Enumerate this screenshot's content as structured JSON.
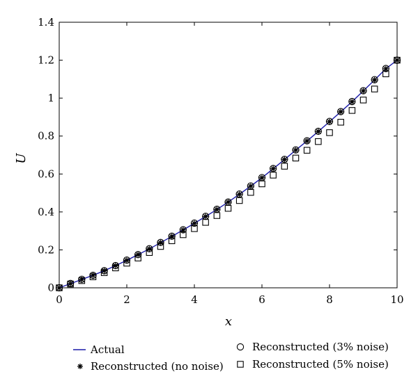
{
  "chart_data": {
    "type": "line",
    "title": "",
    "xlabel": "x",
    "ylabel": "U",
    "xlim": [
      0,
      10
    ],
    "ylim": [
      0,
      1.4
    ],
    "xticks": [
      "0",
      "2",
      "4",
      "6",
      "8",
      "10"
    ],
    "yticks": [
      "0",
      "0.2",
      "0.4",
      "0.6",
      "0.8",
      "1",
      "1.2",
      "1.4"
    ],
    "grid": false,
    "legend_position": "below",
    "x": [
      0,
      0.333,
      0.667,
      1.0,
      1.333,
      1.667,
      2.0,
      2.333,
      2.667,
      3.0,
      3.333,
      3.667,
      4.0,
      4.333,
      4.667,
      5.0,
      5.333,
      5.667,
      6.0,
      6.333,
      6.667,
      7.0,
      7.333,
      7.667,
      8.0,
      8.333,
      8.667,
      9.0,
      9.333,
      9.667,
      10.0
    ],
    "series": [
      {
        "name": "Actual",
        "style": "line",
        "color": "#1a1aa8",
        "values": [
          0,
          0.022,
          0.044,
          0.066,
          0.09,
          0.117,
          0.145,
          0.175,
          0.205,
          0.238,
          0.271,
          0.305,
          0.34,
          0.376,
          0.413,
          0.452,
          0.493,
          0.536,
          0.58,
          0.628,
          0.676,
          0.726,
          0.774,
          0.824,
          0.876,
          0.928,
          0.981,
          1.038,
          1.096,
          1.155,
          1.2
        ]
      },
      {
        "name": "Reconstructed (no noise)",
        "style": "star",
        "color": "#000000",
        "values": [
          0,
          0.022,
          0.044,
          0.066,
          0.09,
          0.117,
          0.145,
          0.175,
          0.205,
          0.238,
          0.271,
          0.305,
          0.34,
          0.376,
          0.413,
          0.452,
          0.493,
          0.536,
          0.58,
          0.628,
          0.676,
          0.726,
          0.774,
          0.824,
          0.876,
          0.928,
          0.981,
          1.038,
          1.096,
          1.155,
          1.2
        ]
      },
      {
        "name": "Reconstructed (3% noise)",
        "style": "circle",
        "color": "#000000",
        "values": [
          0,
          0.023,
          0.045,
          0.066,
          0.09,
          0.117,
          0.146,
          0.175,
          0.206,
          0.239,
          0.272,
          0.306,
          0.341,
          0.377,
          0.414,
          0.452,
          0.494,
          0.537,
          0.581,
          0.629,
          0.677,
          0.727,
          0.775,
          0.825,
          0.877,
          0.929,
          0.982,
          1.039,
          1.097,
          1.156,
          1.2
        ]
      },
      {
        "name": "Reconstructed (5% noise)",
        "style": "square",
        "color": "#000000",
        "values": [
          0,
          0.02,
          0.038,
          0.058,
          0.08,
          0.105,
          0.13,
          0.157,
          0.186,
          0.218,
          0.248,
          0.28,
          0.312,
          0.345,
          0.381,
          0.419,
          0.46,
          0.503,
          0.548,
          0.594,
          0.641,
          0.684,
          0.725,
          0.771,
          0.818,
          0.873,
          0.935,
          0.99,
          1.048,
          1.128,
          1.2
        ]
      }
    ]
  }
}
